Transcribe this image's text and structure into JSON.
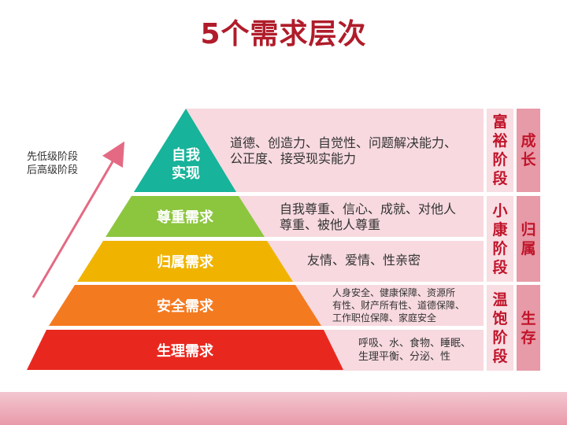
{
  "title": "5个需求层次",
  "side_note": {
    "line1": "先低级阶段",
    "line2": "后高级阶段"
  },
  "levels": [
    {
      "label_line1": "自我",
      "label_line2": "实现",
      "desc_line1": "道德、创造力、自觉性、问题解决能力、",
      "desc_line2": "公正度、接受现实能力",
      "color": "#17b39a"
    },
    {
      "label_line1": "尊重需求",
      "label_line2": "",
      "desc_line1": "自我尊重、信心、成就、对他人",
      "desc_line2": "尊重、被他人尊重",
      "color": "#8cc63f"
    },
    {
      "label_line1": "归属需求",
      "label_line2": "",
      "desc_line1": "友情、爱情、性亲密",
      "desc_line2": "",
      "color": "#f0b400"
    },
    {
      "label_line1": "安全需求",
      "label_line2": "",
      "desc_line1": "人身安全、健康保障、资源所",
      "desc_line2": "有性、财产所有性、道德保障、",
      "desc_line3": "工作职位保障、家庭安全",
      "color": "#f47a20"
    },
    {
      "label_line1": "生理需求",
      "label_line2": "",
      "desc_line1": "呼吸、水、食物、睡眠、",
      "desc_line2": "生理平衡、分泌、性",
      "color": "#e8281f"
    }
  ],
  "stages": [
    {
      "label": "富裕阶段"
    },
    {
      "label": "小康阶段"
    },
    {
      "label": "温饱阶段"
    }
  ],
  "growth": [
    {
      "label": "成长"
    },
    {
      "label": "归属"
    },
    {
      "label": "生存"
    }
  ],
  "colors": {
    "title": "#b01c2a",
    "accent": "#c0142a",
    "panel": "#f7d9df",
    "arrow": "#e46a83"
  }
}
